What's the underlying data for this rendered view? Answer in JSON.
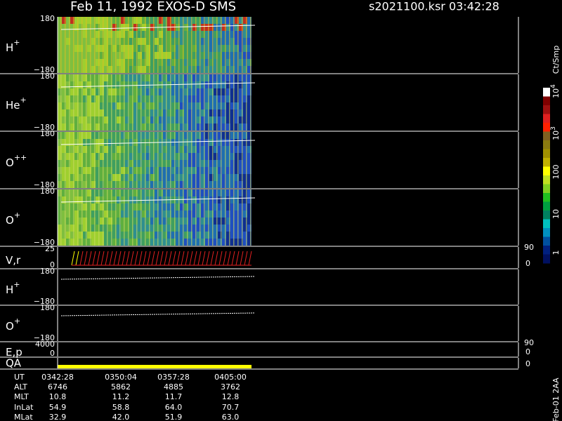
{
  "header": {
    "title": "Feb 11, 1992   EXOS-D SMS",
    "file": "s2021100.ksr  03:42:28"
  },
  "panels": [
    {
      "label": "H",
      "sup": "+",
      "top": "180",
      "bottom": "−180"
    },
    {
      "label": "He",
      "sup": "+",
      "top": "180",
      "bottom": "−180"
    },
    {
      "label": "O",
      "sup": "++",
      "top": "180",
      "bottom": "−180"
    },
    {
      "label": "O",
      "sup": "+",
      "top": "180",
      "bottom": "−180"
    },
    {
      "label": "V,r",
      "top": "25",
      "bottom": "0",
      "right_top": "90",
      "right_bottom": "0"
    },
    {
      "label": "H",
      "sup": "+",
      "top": "180",
      "bottom": "−180"
    },
    {
      "label": "O",
      "sup": "+",
      "top": "180",
      "bottom": "−180"
    },
    {
      "label": "E,p",
      "top": "4000",
      "bottom": "0",
      "right_top": "90",
      "right_bottom": "0"
    },
    {
      "label": "QA",
      "right_bottom": "0"
    }
  ],
  "colorbar": {
    "unit": "Ct/Smp",
    "labels": [
      {
        "base": "10",
        "exp": "4"
      },
      {
        "base": "10",
        "exp": "3"
      },
      {
        "base": "100"
      },
      {
        "base": "10"
      },
      {
        "base": "1"
      }
    ]
  },
  "footer": {
    "rows": [
      {
        "name": "UT",
        "values": [
          "0342:28",
          "0350:04",
          "0357:28",
          "0405:00"
        ]
      },
      {
        "name": "ALT",
        "values": [
          "6746",
          "5862",
          "4885",
          "3762"
        ]
      },
      {
        "name": "MLT",
        "values": [
          "10.8",
          "11.2",
          "11.7",
          "12.8"
        ]
      },
      {
        "name": "InLat",
        "values": [
          "54.9",
          "58.8",
          "64.0",
          "70.7"
        ]
      },
      {
        "name": "MLat",
        "values": [
          "32.9",
          "42.0",
          "51.9",
          "63.0"
        ]
      }
    ]
  },
  "stamp": "Feb-01 2AA"
}
